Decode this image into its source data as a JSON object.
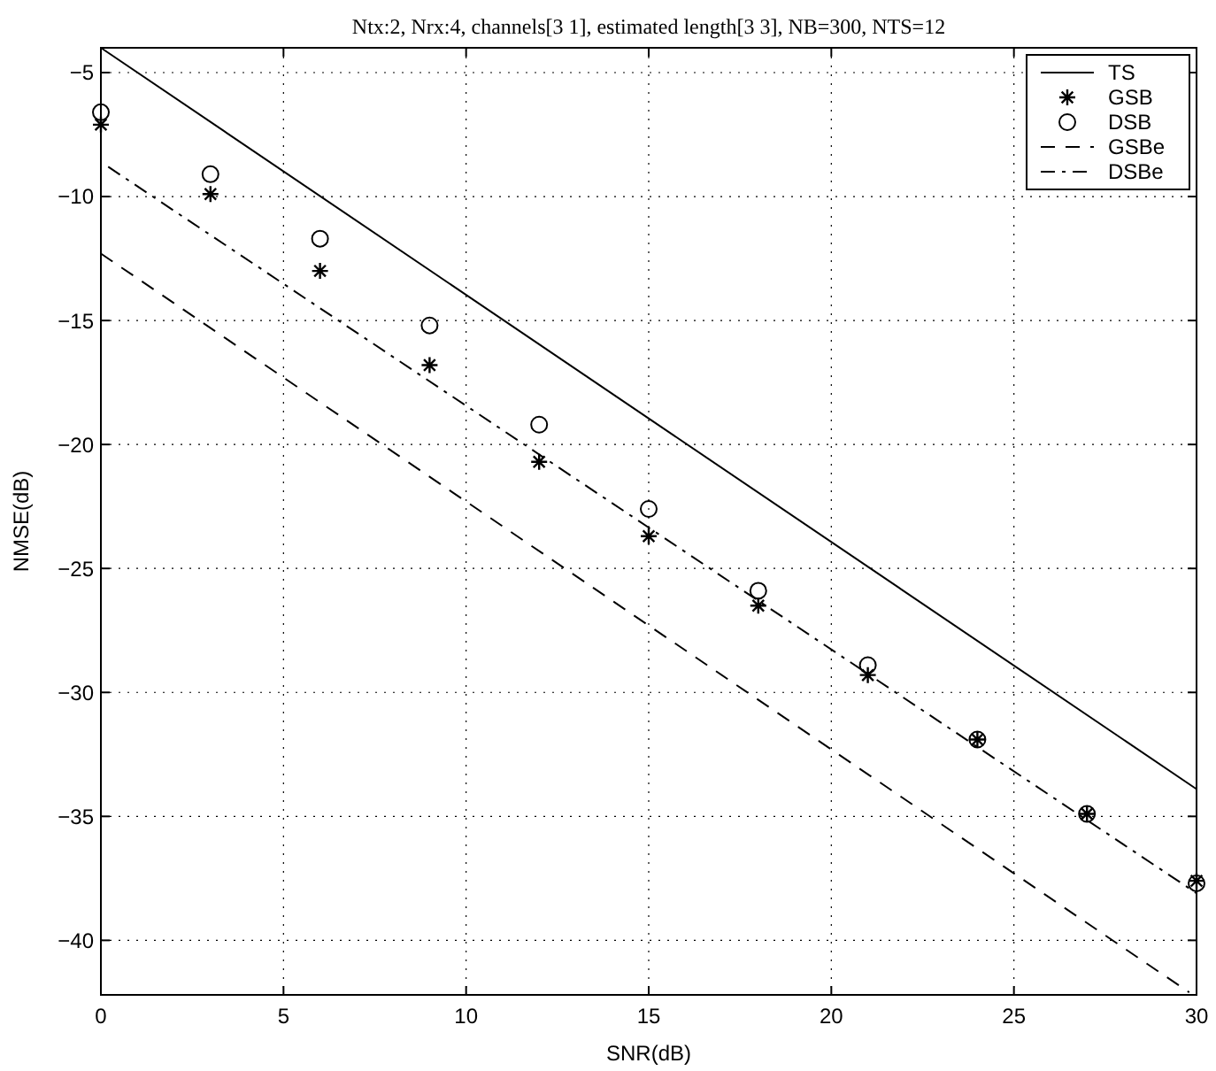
{
  "chart_data": {
    "type": "line",
    "title": "Ntx:2, Nrx:4, channels[3 1], estimated length[3 3], NB=300, NTS=12",
    "xlabel": "SNR(dB)",
    "ylabel": "NMSE(dB)",
    "xlim": [
      0,
      30
    ],
    "ylim": [
      -42.2,
      -4
    ],
    "xticks": [
      0,
      5,
      10,
      15,
      20,
      25,
      30
    ],
    "yticks": [
      -5,
      -10,
      -15,
      -20,
      -25,
      -30,
      -35,
      -40
    ],
    "grid": true,
    "legend": "top right",
    "series": [
      {
        "name": "TS",
        "color": "#000000",
        "line_style": "solid",
        "marker": "none",
        "x": [
          0,
          30
        ],
        "values": [
          -4,
          -33.9
        ]
      },
      {
        "name": "GSB",
        "type": "scatter",
        "color": "#000000",
        "marker": "cross",
        "x": [
          0,
          3,
          6,
          9,
          12,
          15,
          18,
          21,
          24,
          27,
          30
        ],
        "values": [
          -7.1,
          -9.9,
          -13.0,
          -16.8,
          -20.7,
          -23.7,
          -26.5,
          -29.3,
          -31.9,
          -34.9,
          -37.6
        ]
      },
      {
        "name": "DSB",
        "type": "scatter",
        "color": "#000000",
        "marker": "circle",
        "x": [
          0,
          3,
          6,
          9,
          12,
          15,
          18,
          21,
          24,
          27,
          30
        ],
        "values": [
          -6.6,
          -9.1,
          -11.7,
          -15.2,
          -19.2,
          -22.6,
          -25.9,
          -28.9,
          -31.9,
          -34.9,
          -37.7
        ]
      },
      {
        "name": "GSBe",
        "color": "#000000",
        "line_style": "dashed",
        "marker": "none",
        "x": [
          0,
          29.8
        ],
        "values": [
          -12.3,
          -42.1
        ]
      },
      {
        "name": "DSBe",
        "color": "#000000",
        "line_style": "dashdot",
        "marker": "none",
        "x": [
          0.2,
          30
        ],
        "values": [
          -8.8,
          -38.1
        ]
      }
    ]
  }
}
